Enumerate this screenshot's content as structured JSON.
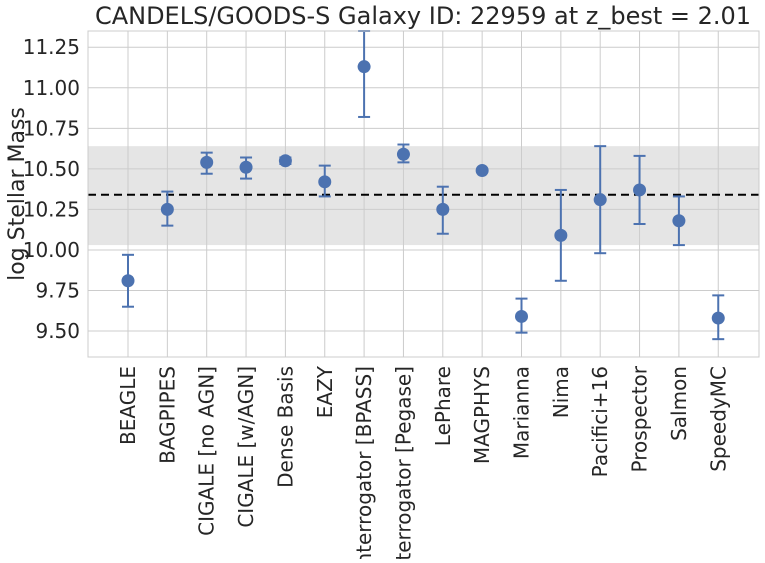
{
  "chart_data": {
    "type": "scatter",
    "title": "CANDELS/GOODS-S Galaxy ID: 22959 at z_best = 2.01",
    "xlabel": "",
    "ylabel": "log Stellar Mass",
    "ylim": [
      9.34,
      11.35
    ],
    "yticks": [
      "9.50",
      "9.75",
      "10.00",
      "10.25",
      "10.50",
      "10.75",
      "11.00",
      "11.25"
    ],
    "ytick_values": [
      9.5,
      9.75,
      10.0,
      10.25,
      10.5,
      10.75,
      11.0,
      11.25
    ],
    "grid": true,
    "marker_color": "#4c72b0",
    "errorbar_color": "#4c72b0",
    "band_color": "#e5e5e5",
    "reference_line": {
      "value": 10.34,
      "style": "dashed",
      "color": "#000000"
    },
    "shaded_band": {
      "low": 10.03,
      "high": 10.64
    },
    "categories": [
      "BEAGLE",
      "BAGPIPES",
      "CIGALE [no AGN]",
      "CIGALE [w/AGN]",
      "Dense Basis",
      "EAZY",
      "Interrogator [BPASS]",
      "Interrogator [Pegase]",
      "LePhare",
      "MAGPHYS",
      "Marianna",
      "Nima",
      "Pacifici+16",
      "Prospector",
      "Salmon",
      "SpeedyMC"
    ],
    "values": [
      9.81,
      10.25,
      10.54,
      10.51,
      10.55,
      10.42,
      11.13,
      10.59,
      10.25,
      10.49,
      9.59,
      10.09,
      10.31,
      10.37,
      10.18,
      9.58
    ],
    "err_low": [
      9.65,
      10.15,
      10.47,
      10.44,
      10.53,
      10.33,
      10.82,
      10.54,
      10.1,
      10.49,
      9.49,
      9.81,
      9.98,
      10.16,
      10.03,
      9.45
    ],
    "err_high": [
      9.97,
      10.36,
      10.6,
      10.57,
      10.57,
      10.52,
      11.35,
      10.65,
      10.39,
      10.49,
      9.7,
      10.37,
      10.64,
      10.58,
      10.33,
      9.72
    ]
  }
}
